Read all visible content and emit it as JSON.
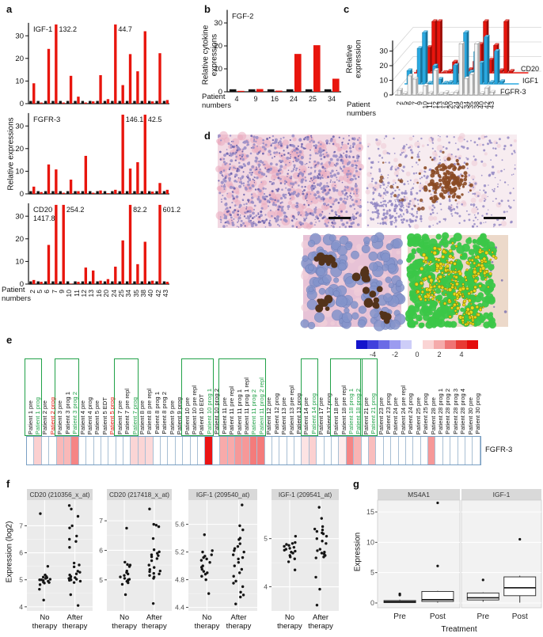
{
  "panels": {
    "a": "a",
    "b": "b",
    "c": "c",
    "d": "d",
    "e": "e",
    "f": "f",
    "g": "g"
  },
  "labels": {
    "a_ylabel": "Relative expressions",
    "b_ylabel_l1": "Relative cytokine",
    "b_ylabel_l2": "expressions",
    "c_ylabel_l1": "Relative",
    "c_ylabel_l2": "expression",
    "patient_l1": "Patient",
    "patient_l2": "numbers",
    "f_ylabel": "Expression (log2)",
    "g_ylabel": "Expression",
    "g_xlabel": "Treatment"
  },
  "colors": {
    "bar_red": "#e8150d",
    "bar_black": "#111111",
    "bar_blue": "#29a8e0",
    "green_accent": "#21a148",
    "label_red": "#e8150d",
    "panel_bg": "#ebebeb",
    "strip_bg": "#d9d9d9",
    "heat_border": "#a8bfd4"
  },
  "histology": {
    "img1": {
      "bg": "#f2d8e2",
      "nucleus": "#9a8ec6",
      "dark": "#6f63ad",
      "pink": "#eaa9bd"
    },
    "img2": {
      "bg": "#f7ecf0",
      "nucleus": "#948ac4",
      "brown": "#8a4a24",
      "pink": "#eec6d2"
    },
    "img3": {
      "bg": "#e7c2d6",
      "cell": "#8494cb",
      "cell_edge": "#6a7ab5",
      "brown": "#53331a",
      "pink": "#f0cdd9"
    },
    "img4": {
      "bg": "#ecd9ca",
      "green": "#3bc748",
      "yellow": "#e9d91c",
      "yellow_edge": "#857400",
      "purple": "#7a6fb0"
    }
  },
  "chart_data": [
    {
      "id": "a_igf1",
      "type": "bar",
      "panel": "a",
      "gene": "IGF-1",
      "categories": [
        "2",
        "5",
        "6",
        "7",
        "9",
        "10",
        "11",
        "12",
        "13",
        "16",
        "20",
        "24",
        "25",
        "34",
        "35",
        "38",
        "40",
        "42",
        "43"
      ],
      "control_value": 1.2,
      "values": [
        9,
        0.5,
        24.2,
        132.2,
        0.5,
        12.3,
        3.1,
        0.5,
        1,
        12.6,
        2,
        44.7,
        8.2,
        21.9,
        14.3,
        32,
        1,
        22.3,
        1.6
      ],
      "yticks": [
        0,
        10,
        20,
        30
      ],
      "ymax": 35,
      "annotations": [
        {
          "text": "132.2",
          "category": "7"
        },
        {
          "text": "44.7",
          "category": "24"
        }
      ]
    },
    {
      "id": "a_fgfr3",
      "type": "bar",
      "panel": "a",
      "gene": "FGFR-3",
      "categories": [
        "2",
        "5",
        "6",
        "7",
        "9",
        "10",
        "11",
        "12",
        "13",
        "16",
        "20",
        "24",
        "25",
        "34",
        "35",
        "38",
        "40",
        "42",
        "43"
      ],
      "control_value": 1.2,
      "values": [
        3.2,
        0.8,
        13,
        10.8,
        0.5,
        6.3,
        1.2,
        16.8,
        0.5,
        1.5,
        0.3,
        1.8,
        146.1,
        11.2,
        14,
        42.5,
        1,
        4.8,
        1.8
      ],
      "yticks": [
        0,
        10,
        20,
        30
      ],
      "ymax": 35,
      "annotations": [
        {
          "text": "146.1",
          "category": "25"
        },
        {
          "text": "42.5",
          "category": "38"
        }
      ]
    },
    {
      "id": "a_cd20",
      "type": "bar",
      "panel": "a",
      "gene": "CD20",
      "title_note": "1417.8",
      "categories": [
        "2",
        "5",
        "6",
        "7",
        "9",
        "10",
        "11",
        "12",
        "13",
        "16",
        "20",
        "24",
        "25",
        "34",
        "35",
        "38",
        "40",
        "42",
        "43"
      ],
      "control_value": 1.2,
      "values": [
        1.8,
        1,
        17.3,
        1417.8,
        254.2,
        0.2,
        1,
        7.3,
        6,
        1.5,
        2.2,
        7.7,
        19.3,
        82.2,
        8.8,
        18.7,
        1.5,
        601.2,
        1
      ],
      "yticks": [
        0,
        10,
        20,
        30
      ],
      "ymax": 35,
      "annotations": [
        {
          "text": "254.2",
          "category": "9"
        },
        {
          "text": "82.2",
          "category": "34"
        },
        {
          "text": "601.2",
          "category": "42"
        }
      ]
    },
    {
      "id": "b_fgf2",
      "type": "bar",
      "panel": "b",
      "gene": "FGF-2",
      "categories": [
        "4",
        "9",
        "16",
        "24",
        "25",
        "34"
      ],
      "control_value": 1.1,
      "values": [
        0.4,
        1.2,
        0.5,
        16.5,
        20.3,
        5.7
      ],
      "yticks": [
        0,
        10,
        20,
        30
      ],
      "ymax": 35,
      "annotations": []
    },
    {
      "id": "c_3d",
      "type": "bar3d",
      "panel": "c",
      "categories": [
        "2",
        "5",
        "6",
        "7",
        "9",
        "10",
        "11",
        "12",
        "13",
        "16",
        "20",
        "24",
        "25",
        "34",
        "35",
        "38",
        "40",
        "42",
        "43"
      ],
      "yticks": [
        0,
        10,
        20,
        30
      ],
      "ymax": 35,
      "series": [
        {
          "name": "FGFR-3",
          "values": [
            3.2,
            0.8,
            13,
            10.8,
            0.5,
            6.3,
            1.2,
            16.8,
            0.5,
            1.5,
            0.3,
            1.8,
            146.1,
            11.2,
            14,
            42.5,
            1,
            4.8,
            1.8
          ]
        },
        {
          "name": "IGF1",
          "values": [
            9,
            0.5,
            24.2,
            132.2,
            0.5,
            12.3,
            3.1,
            0.5,
            1,
            12.6,
            2,
            44.7,
            8.2,
            21.9,
            14.3,
            32,
            1,
            22.3,
            1.6
          ]
        },
        {
          "name": "CD20",
          "values": [
            1.8,
            1,
            17.3,
            1417.8,
            254.2,
            0.2,
            1,
            7.3,
            6,
            1.5,
            2.2,
            7.7,
            19.3,
            82.2,
            8.8,
            18.7,
            1.5,
            601.2,
            1
          ]
        }
      ]
    },
    {
      "id": "e_heatmap",
      "type": "heatmap",
      "panel": "e",
      "row_label": "FGFR-3",
      "colorbar_ticks": [
        "-4",
        "-2",
        "0",
        "2",
        "4"
      ],
      "columns": [
        "Patient 1 pre",
        "Patient 1 prog",
        "Patient 2 pre",
        "Patient 2 prog",
        "Patient 3 pre",
        "Patient 3 prog 1",
        "Patient 3 prog 2",
        "Patient 4 pre",
        "Patient 4 prog",
        "Patient 5 pre",
        "Patient 5 EDT",
        "Patient 5 prog",
        "Patient 7 pre",
        "Patient 7 pre repl",
        "Patient 7 prog",
        "Patient 8 pre",
        "Patient 8 pre repl",
        "Patient 8 prog 1",
        "Patient 8 prog 2",
        "Patient 9 pre",
        "Patient 9 prog",
        "Patient 10 pre",
        "Patient 10 pre repl",
        "Patient 10 EDT",
        "Patient 10 prog 1",
        "Patient 10 prog 2",
        "Patient 11 pre",
        "Patient 11 pre repl",
        "Patient 11 prog 1",
        "Patient 11 prog 1 repl",
        "Patient 11 prog 2",
        "Patient 11 prog 2 repl",
        "Patient 12 pre",
        "Patient 12 prog",
        "Patient 13 pre",
        "Patient 13 pre repl",
        "Patient 13 prog",
        "Patient 14 pre",
        "Patient 14 prog",
        "Patient 17 pre",
        "Patient 17 prog",
        "Patient 18 pre",
        "Patient 18 pre repl",
        "Patient 18 prog 1",
        "Patient 18 prog 2",
        "Patient 21 pre",
        "Patient 21 prog",
        "Patient 23 pre",
        "Patient 23 prog",
        "Patient 24 pre",
        "Patient 24 pre repl",
        "Patient 24 prog",
        "Patient 25 pre",
        "Patient 25 prog",
        "Patient 28 pre",
        "Patient 28 prog 1",
        "Patient 28 prog 2",
        "Patient 28 prog 3",
        "Patient 28 prog 4",
        "Patient 30 pre",
        "Patient 30 prog"
      ],
      "values": [
        0,
        1,
        0,
        0,
        1.5,
        1.5,
        2.6,
        0,
        0,
        0,
        0,
        0,
        0,
        0,
        0.9,
        0.9,
        0.8,
        0,
        0,
        0,
        0,
        0,
        0,
        0,
        5,
        0,
        1.8,
        1.8,
        2.2,
        2.2,
        2.8,
        2.8,
        0,
        0,
        0,
        0,
        0,
        0.6,
        1,
        0,
        0,
        0,
        0.4,
        2.6,
        1.6,
        0,
        1.4,
        0,
        0,
        0,
        0,
        0,
        0,
        0,
        2.2,
        0,
        0,
        0,
        0,
        0,
        0
      ],
      "green_labels": [
        1,
        6,
        14,
        24,
        30,
        31,
        38,
        43,
        44,
        46
      ],
      "red_labels": [
        3,
        11
      ],
      "group_boxes": [
        [
          0,
          1
        ],
        [
          4,
          6
        ],
        [
          12,
          14
        ],
        [
          21,
          24
        ],
        [
          26,
          31
        ],
        [
          37,
          38
        ],
        [
          41,
          44
        ],
        [
          45,
          46
        ]
      ]
    },
    {
      "id": "f1",
      "type": "scatter",
      "panel": "f",
      "title": "CD20 (210356_x_at)",
      "ylim": [
        3.85,
        7.95
      ],
      "yticks": [
        4,
        5,
        6,
        7
      ],
      "cat_lines": [
        [
          "No",
          "therapy"
        ],
        [
          "After",
          "therapy"
        ]
      ],
      "groups": [
        [
          7.45,
          5.5,
          5.18,
          5.12,
          5.1,
          5.08,
          5.05,
          5.02,
          5.0,
          5.0,
          4.98,
          4.95,
          4.92,
          4.9,
          4.88,
          4.82,
          4.65,
          4.25
        ],
        [
          7.75,
          7.62,
          7.35,
          7.0,
          6.92,
          6.62,
          6.5,
          6.42,
          6.2,
          5.62,
          5.55,
          5.48,
          5.32,
          5.28,
          5.22,
          5.18,
          5.12,
          5.1,
          5.08,
          5.05,
          5.02,
          5.0,
          5.0,
          4.98,
          4.95,
          4.9,
          4.45,
          4.05
        ]
      ]
    },
    {
      "id": "f2",
      "type": "scatter",
      "panel": "f",
      "title": "CD20 (217418_x_at)",
      "ylim": [
        3.95,
        7.7
      ],
      "yticks": [
        5,
        6,
        7
      ],
      "cat_lines": [
        [
          "No",
          "therapy"
        ],
        [
          "After",
          "therapy"
        ]
      ],
      "groups": [
        [
          6.75,
          5.6,
          5.52,
          5.5,
          5.45,
          5.3,
          5.25,
          5.2,
          5.15,
          5.1,
          5.05,
          5.02,
          5.0,
          4.98,
          4.95,
          4.9,
          4.85,
          4.5
        ],
        [
          7.4,
          6.88,
          6.85,
          6.8,
          6.4,
          6.02,
          5.95,
          5.9,
          5.85,
          5.82,
          5.78,
          5.72,
          5.65,
          5.5,
          5.42,
          5.35,
          5.3,
          5.28,
          5.22,
          5.2,
          5.15,
          5.1,
          5.05,
          4.2
        ]
      ]
    },
    {
      "id": "f3",
      "type": "scatter",
      "panel": "f",
      "title": "IGF-1 (209540_at)",
      "ylim": [
        4.35,
        5.95
      ],
      "yticks": [
        4.4,
        4.8,
        5.2,
        5.6
      ],
      "cat_lines": [
        [
          "No",
          "therapy"
        ],
        [
          "After",
          "therapy"
        ]
      ],
      "groups": [
        [
          5.45,
          5.22,
          5.2,
          5.16,
          5.14,
          5.12,
          5.1,
          5.08,
          5.05,
          5.0,
          4.98,
          4.95,
          4.92,
          4.9,
          4.88,
          4.85,
          4.8,
          4.6
        ],
        [
          5.88,
          5.58,
          5.52,
          5.4,
          5.38,
          5.32,
          5.28,
          5.25,
          5.22,
          5.2,
          5.16,
          5.12,
          5.1,
          5.05,
          5.0,
          4.95,
          4.9,
          4.85,
          4.78,
          4.75,
          4.7,
          4.62,
          4.58,
          4.55,
          4.45
        ]
      ]
    },
    {
      "id": "f4",
      "type": "scatter",
      "panel": "f",
      "title": "IGF-1 (209541_at)",
      "ylim": [
        3.5,
        5.8
      ],
      "yticks": [
        4,
        5
      ],
      "cat_lines": [
        [
          "No",
          "therapy"
        ],
        [
          "After",
          "therapy"
        ]
      ],
      "groups": [
        [
          5.05,
          4.92,
          4.9,
          4.88,
          4.86,
          4.84,
          4.82,
          4.8,
          4.78,
          4.76,
          4.74,
          4.72,
          4.7,
          4.65,
          4.62,
          4.58,
          4.52,
          4.35
        ],
        [
          5.65,
          5.42,
          5.25,
          5.2,
          5.18,
          5.15,
          5.12,
          5.1,
          5.05,
          5.0,
          4.95,
          4.9,
          4.78,
          4.75,
          4.72,
          4.7,
          4.68,
          4.65,
          4.62,
          4.6,
          4.2,
          3.95,
          3.62
        ]
      ]
    },
    {
      "id": "g_box",
      "type": "box",
      "panel": "g",
      "ylabel": "Expression",
      "xlabel": "Treatment",
      "yticks": [
        0,
        5,
        10,
        15
      ],
      "categories": [
        "Pre",
        "Post"
      ],
      "facets": [
        {
          "name": "MS4A1",
          "boxes": [
            {
              "cat": "Pre",
              "lo": 0,
              "q1": 0.05,
              "med": 0.2,
              "q3": 0.4,
              "hi": 0.55,
              "outliers": [
                1.3,
                1.5
              ]
            },
            {
              "cat": "Post",
              "lo": 0.05,
              "q1": 0.25,
              "med": 0.55,
              "q3": 1.9,
              "hi": 2.0,
              "outliers": [
                6.1,
                16.5
              ]
            }
          ]
        },
        {
          "name": "IGF-1",
          "boxes": [
            {
              "cat": "Pre",
              "lo": 0.2,
              "q1": 0.5,
              "med": 0.85,
              "q3": 1.65,
              "hi": 1.75,
              "outliers": [
                3.8
              ]
            },
            {
              "cat": "Post",
              "lo": 0.05,
              "q1": 1.2,
              "med": 2.5,
              "q3": 4.3,
              "hi": 4.5,
              "outliers": [
                10.5
              ]
            }
          ]
        }
      ]
    }
  ]
}
